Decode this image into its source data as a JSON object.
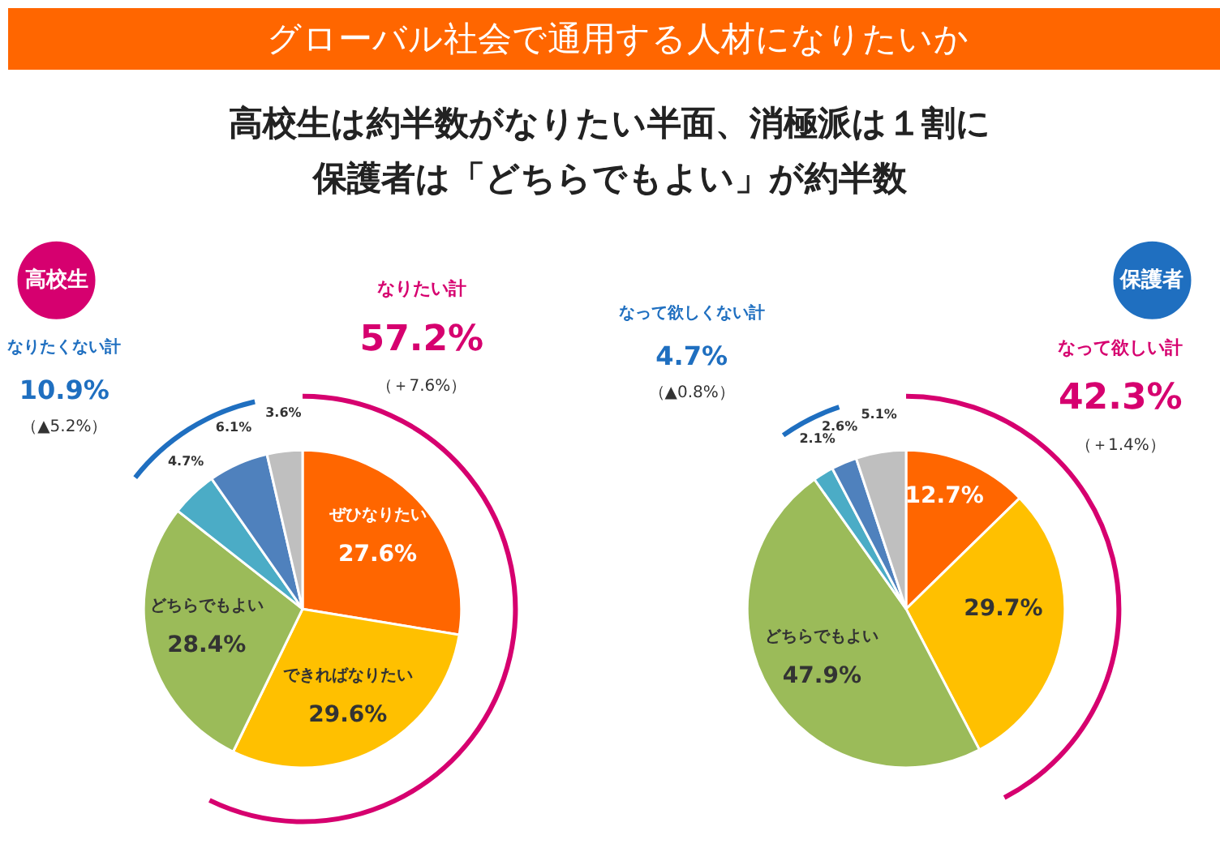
{
  "chart_data": [
    {
      "type": "pie",
      "title": "グローバル社会で通用する人材になりたいか",
      "subtitle": "高校生は約半数がなりたい半面、消極派は１割に保護者は「どちらでもよい」が約半数",
      "categories": [
        "ぜひなりたい",
        "できればなりたい",
        "どちらでもよい",
        null,
        null,
        null
      ],
      "values": [
        27.6,
        29.6,
        28.4,
        4.7,
        6.1,
        3.6
      ],
      "value_labels": [
        "27.6%",
        "29.6%",
        "28.4%",
        "4.7%",
        "6.1%",
        "3.6%"
      ],
      "colors": [
        "#ff6600",
        "#ffc000",
        "#9bbb59",
        "#4bacc6",
        "#4f81bd",
        "#bfbfbf"
      ],
      "annotations": [
        "高校生",
        "なりたい計\n57.2%\n（＋7.6%）",
        "なりたくない計\n10.9%\n（▲5.2%）"
      ]
    },
    {
      "type": "pie",
      "categories": [
        null,
        null,
        "どちらでもよい",
        null,
        null,
        null
      ],
      "values": [
        12.7,
        29.7,
        47.9,
        2.1,
        2.6,
        5.1
      ],
      "value_labels": [
        "12.7%",
        "29.7%",
        "47.9%",
        "2.1%",
        "2.6%",
        "5.1%"
      ],
      "colors": [
        "#ff6600",
        "#ffc000",
        "#9bbb59",
        "#4bacc6",
        "#4f81bd",
        "#bfbfbf"
      ],
      "annotations": [
        "保護者",
        "なって欲しい計\n42.3%\n（＋1.4%）",
        "なって欲しくない計\n4.7%\n（▲0.8%）"
      ]
    }
  ]
}
